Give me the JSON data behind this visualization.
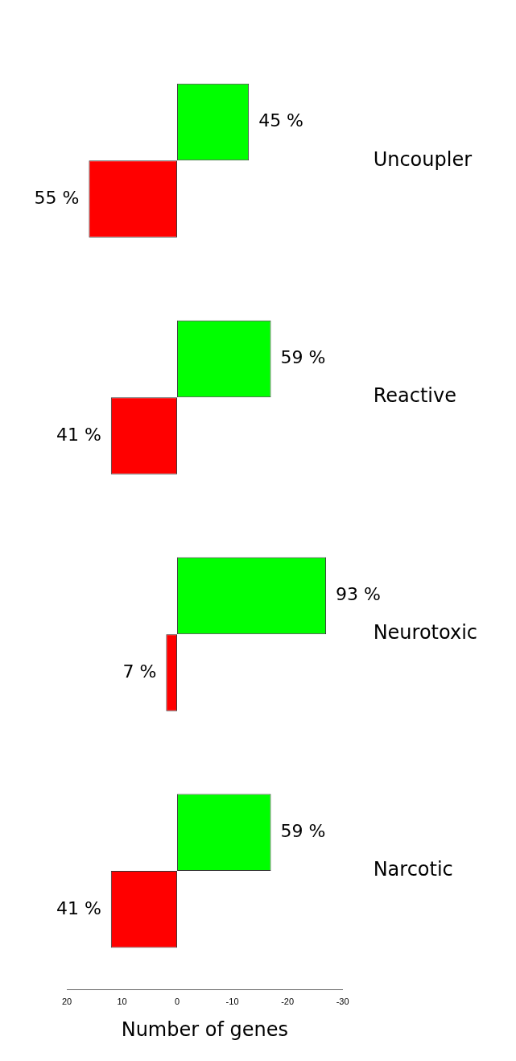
{
  "chart_data": {
    "type": "bar",
    "orientation": "horizontal",
    "xlabel": "Number of genes",
    "categories": [
      "Uncoupler",
      "Reactive",
      "Neurotoxic",
      "Narcotic"
    ],
    "series": [
      {
        "color": "#00ff00",
        "values": [
          -13,
          -17,
          -27,
          -17
        ]
      },
      {
        "color": "#ff0000",
        "values": [
          16,
          12,
          2,
          12
        ]
      }
    ],
    "annotations": [
      {
        "text": "45 %",
        "x": -13,
        "y": "Uncoupler"
      },
      {
        "text": "55 %",
        "x": 16,
        "y": "Uncoupler"
      },
      {
        "text": "59 %",
        "x": -17,
        "y": "Reactive"
      },
      {
        "text": "41 %",
        "x": 12,
        "y": "Reactive"
      },
      {
        "text": "93 %",
        "x": -27,
        "y": "Neurotoxic"
      },
      {
        "text": "7 %",
        "x": 2,
        "y": "Neurotoxic"
      },
      {
        "text": "59 %",
        "x": -17,
        "y": "Narcotic"
      },
      {
        "text": "41 %",
        "x": 12,
        "y": "Narcotic"
      }
    ],
    "xlim": [
      20,
      -30
    ],
    "xticks": [
      20,
      10,
      0,
      -10,
      -20,
      -30
    ],
    "grid": false,
    "legend": false
  }
}
